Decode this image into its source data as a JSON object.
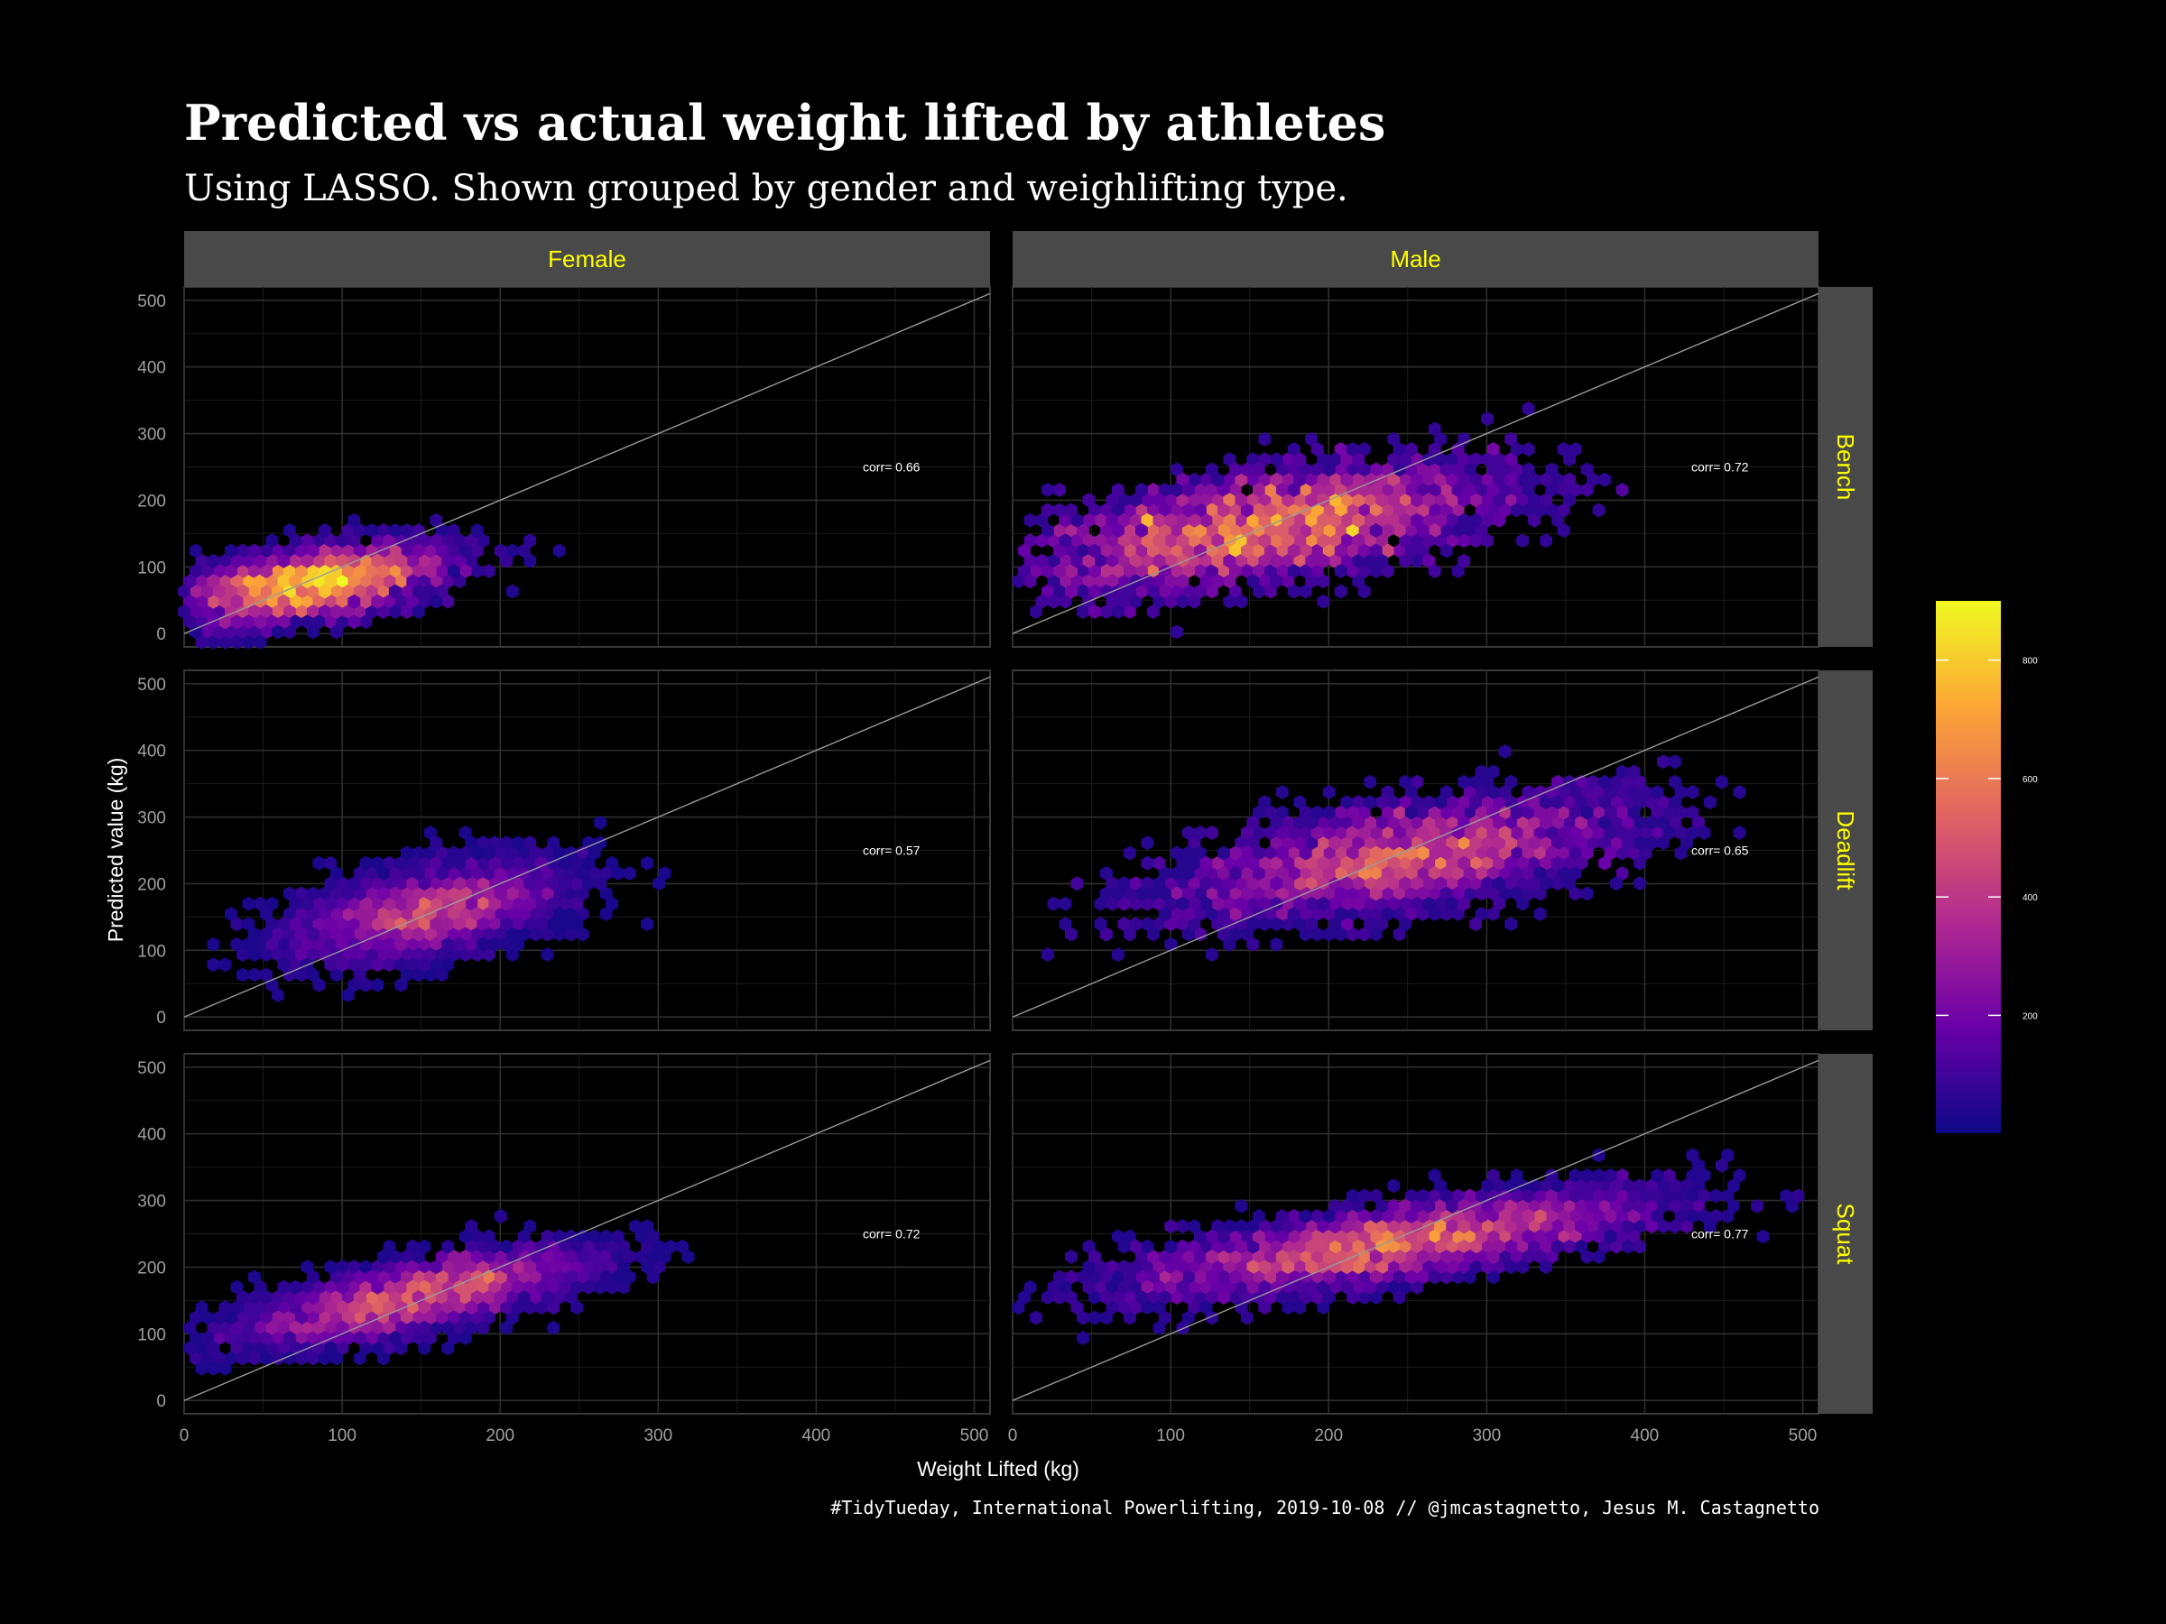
{
  "chart_data": {
    "type": "heatmap",
    "title": "Predicted vs actual weight lifted by athletes",
    "subtitle": "Using LASSO. Shown grouped by gender and weighlifting type.",
    "xlabel": "Weight Lifted (kg)",
    "ylabel": "Predicted value (kg)",
    "xlim": [
      0,
      510
    ],
    "ylim": [
      -20,
      520
    ],
    "x_ticks": [
      0,
      100,
      200,
      300,
      400,
      500
    ],
    "y_ticks": [
      0,
      100,
      200,
      300,
      400,
      500
    ],
    "grid": true,
    "reference_line": "y = x",
    "caption": "#TidyTueday, International Powerlifting, 2019-10-08 // @jmcastagnetto, Jesus M. Castagnetto",
    "columns": [
      "Female",
      "Male"
    ],
    "rows": [
      "Bench",
      "Deadlift",
      "Squat"
    ],
    "legend": {
      "position": "right",
      "ticks": [
        200,
        400,
        600,
        800
      ],
      "range": [
        1,
        900
      ],
      "colors": [
        "#0d0887",
        "#6a00a8",
        "#b12a90",
        "#e16462",
        "#fca636",
        "#f0f921"
      ]
    },
    "panels": [
      {
        "sex": "Female",
        "lift": "Bench",
        "corr_label": "corr= 0.66",
        "clusters": [
          {
            "cx": 80,
            "cy": 75,
            "sx": 50,
            "sy": 35,
            "rho": 0.5,
            "peak": 900,
            "n": 3500
          }
        ]
      },
      {
        "sex": "Male",
        "lift": "Bench",
        "corr_label": "corr= 0.72",
        "clusters": [
          {
            "cx": 160,
            "cy": 160,
            "sx": 85,
            "sy": 55,
            "rho": 0.55,
            "peak": 820,
            "n": 4000
          }
        ]
      },
      {
        "sex": "Female",
        "lift": "Deadlift",
        "corr_label": "corr= 0.57",
        "clusters": [
          {
            "cx": 155,
            "cy": 160,
            "sx": 50,
            "sy": 45,
            "rho": 0.5,
            "peak": 550,
            "n": 3500
          }
        ]
      },
      {
        "sex": "Male",
        "lift": "Deadlift",
        "corr_label": "corr= 0.65",
        "clusters": [
          {
            "cx": 245,
            "cy": 240,
            "sx": 85,
            "sy": 55,
            "rho": 0.55,
            "peak": 650,
            "n": 4000
          }
        ]
      },
      {
        "sex": "Female",
        "lift": "Squat",
        "corr_label": "corr= 0.72",
        "clusters": [
          {
            "cx": 145,
            "cy": 155,
            "sx": 65,
            "sy": 42,
            "rho": 0.7,
            "peak": 600,
            "n": 3500
          }
        ]
      },
      {
        "sex": "Male",
        "lift": "Squat",
        "corr_label": "corr= 0.77",
        "clusters": [
          {
            "cx": 240,
            "cy": 235,
            "sx": 95,
            "sy": 45,
            "rho": 0.7,
            "peak": 700,
            "n": 4500
          }
        ]
      }
    ]
  }
}
